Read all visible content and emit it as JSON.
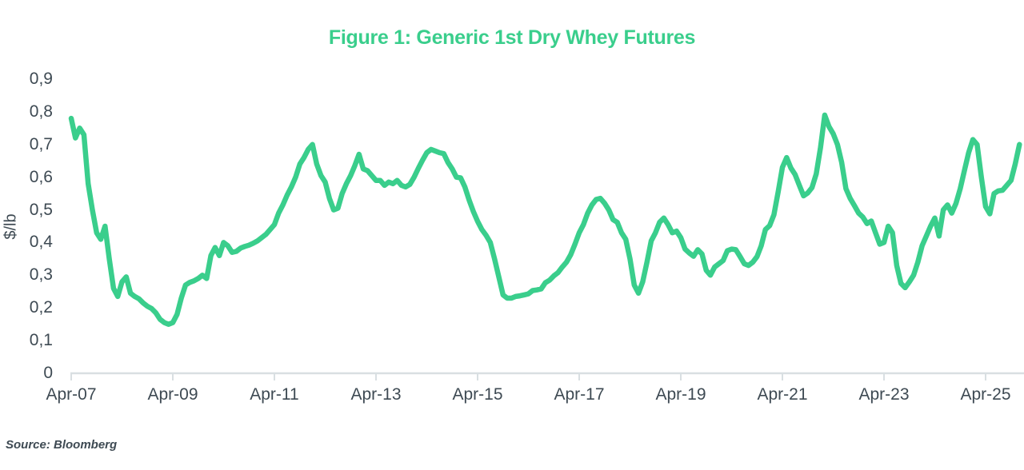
{
  "title": "Figure 1: Generic 1st Dry Whey Futures",
  "source_note": "Source: Bloomberg",
  "colors": {
    "accent_green": "#3ACE8C",
    "text": "#3E4A53",
    "axis_gray": "#D9DFE2"
  },
  "chart_data": {
    "type": "line",
    "title": "Figure 1: Generic 1st Dry Whey Futures",
    "xlabel": "",
    "ylabel": "$/lb",
    "ylim": [
      0,
      0.9
    ],
    "grid": false,
    "legend_position": "none",
    "y_tick_labels": [
      "0",
      "0,1",
      "0,2",
      "0,3",
      "0,4",
      "0,5",
      "0,6",
      "0,7",
      "0,8",
      "0,9"
    ],
    "y_tick_values": [
      0,
      0.1,
      0.2,
      0.3,
      0.4,
      0.5,
      0.6,
      0.7,
      0.8,
      0.9
    ],
    "x_ticks": [
      {
        "label": "Apr-07",
        "month": 0
      },
      {
        "label": "Apr-09",
        "month": 24
      },
      {
        "label": "Apr-11",
        "month": 48
      },
      {
        "label": "Apr-13",
        "month": 72
      },
      {
        "label": "Apr-15",
        "month": 96
      },
      {
        "label": "Apr-17",
        "month": 120
      },
      {
        "label": "Apr-19",
        "month": 144
      },
      {
        "label": "Apr-21",
        "month": 168
      },
      {
        "label": "Apr-23",
        "month": 192
      },
      {
        "label": "Apr-25",
        "month": 216
      }
    ],
    "x_unit": "months since Apr-2007",
    "series": [
      {
        "name": "Generic 1st Dry Whey Futures ($/lb)",
        "points": [
          [
            0,
            0.78
          ],
          [
            1,
            0.72
          ],
          [
            2,
            0.75
          ],
          [
            3,
            0.73
          ],
          [
            4,
            0.58
          ],
          [
            5,
            0.5
          ],
          [
            6,
            0.43
          ],
          [
            7,
            0.41
          ],
          [
            8,
            0.45
          ],
          [
            9,
            0.35
          ],
          [
            10,
            0.26
          ],
          [
            11,
            0.235
          ],
          [
            12,
            0.28
          ],
          [
            13,
            0.295
          ],
          [
            14,
            0.245
          ],
          [
            15,
            0.235
          ],
          [
            16,
            0.228
          ],
          [
            17,
            0.215
          ],
          [
            18,
            0.205
          ],
          [
            19,
            0.198
          ],
          [
            20,
            0.185
          ],
          [
            21,
            0.165
          ],
          [
            22,
            0.155
          ],
          [
            23,
            0.15
          ],
          [
            24,
            0.155
          ],
          [
            25,
            0.18
          ],
          [
            26,
            0.23
          ],
          [
            27,
            0.27
          ],
          [
            28,
            0.278
          ],
          [
            29,
            0.283
          ],
          [
            30,
            0.29
          ],
          [
            31,
            0.3
          ],
          [
            32,
            0.29
          ],
          [
            33,
            0.36
          ],
          [
            34,
            0.385
          ],
          [
            35,
            0.36
          ],
          [
            36,
            0.4
          ],
          [
            37,
            0.39
          ],
          [
            38,
            0.37
          ],
          [
            39,
            0.373
          ],
          [
            40,
            0.383
          ],
          [
            41,
            0.388
          ],
          [
            42,
            0.392
          ],
          [
            43,
            0.398
          ],
          [
            44,
            0.405
          ],
          [
            45,
            0.415
          ],
          [
            46,
            0.425
          ],
          [
            47,
            0.44
          ],
          [
            48,
            0.455
          ],
          [
            49,
            0.49
          ],
          [
            50,
            0.515
          ],
          [
            51,
            0.545
          ],
          [
            52,
            0.57
          ],
          [
            53,
            0.6
          ],
          [
            54,
            0.64
          ],
          [
            55,
            0.66
          ],
          [
            56,
            0.685
          ],
          [
            57,
            0.7
          ],
          [
            58,
            0.64
          ],
          [
            59,
            0.605
          ],
          [
            60,
            0.585
          ],
          [
            61,
            0.535
          ],
          [
            62,
            0.5
          ],
          [
            63,
            0.505
          ],
          [
            64,
            0.55
          ],
          [
            65,
            0.58
          ],
          [
            66,
            0.605
          ],
          [
            67,
            0.635
          ],
          [
            68,
            0.67
          ],
          [
            69,
            0.625
          ],
          [
            70,
            0.62
          ],
          [
            71,
            0.605
          ],
          [
            72,
            0.59
          ],
          [
            73,
            0.59
          ],
          [
            74,
            0.575
          ],
          [
            75,
            0.585
          ],
          [
            76,
            0.58
          ],
          [
            77,
            0.59
          ],
          [
            78,
            0.575
          ],
          [
            79,
            0.57
          ],
          [
            80,
            0.578
          ],
          [
            81,
            0.6
          ],
          [
            82,
            0.627
          ],
          [
            83,
            0.652
          ],
          [
            84,
            0.675
          ],
          [
            85,
            0.685
          ],
          [
            86,
            0.68
          ],
          [
            87,
            0.675
          ],
          [
            88,
            0.672
          ],
          [
            89,
            0.645
          ],
          [
            90,
            0.625
          ],
          [
            91,
            0.6
          ],
          [
            92,
            0.598
          ],
          [
            93,
            0.57
          ],
          [
            94,
            0.53
          ],
          [
            95,
            0.495
          ],
          [
            96,
            0.465
          ],
          [
            97,
            0.44
          ],
          [
            98,
            0.422
          ],
          [
            99,
            0.4
          ],
          [
            100,
            0.35
          ],
          [
            101,
            0.295
          ],
          [
            102,
            0.24
          ],
          [
            103,
            0.23
          ],
          [
            104,
            0.23
          ],
          [
            105,
            0.235
          ],
          [
            106,
            0.237
          ],
          [
            107,
            0.24
          ],
          [
            108,
            0.243
          ],
          [
            109,
            0.253
          ],
          [
            110,
            0.255
          ],
          [
            111,
            0.258
          ],
          [
            112,
            0.277
          ],
          [
            113,
            0.285
          ],
          [
            114,
            0.298
          ],
          [
            115,
            0.308
          ],
          [
            116,
            0.325
          ],
          [
            117,
            0.34
          ],
          [
            118,
            0.363
          ],
          [
            119,
            0.395
          ],
          [
            120,
            0.43
          ],
          [
            121,
            0.455
          ],
          [
            122,
            0.49
          ],
          [
            123,
            0.515
          ],
          [
            124,
            0.532
          ],
          [
            125,
            0.535
          ],
          [
            126,
            0.52
          ],
          [
            127,
            0.5
          ],
          [
            128,
            0.47
          ],
          [
            129,
            0.462
          ],
          [
            130,
            0.43
          ],
          [
            131,
            0.41
          ],
          [
            132,
            0.35
          ],
          [
            133,
            0.27
          ],
          [
            134,
            0.245
          ],
          [
            135,
            0.28
          ],
          [
            136,
            0.34
          ],
          [
            137,
            0.405
          ],
          [
            138,
            0.43
          ],
          [
            139,
            0.462
          ],
          [
            140,
            0.475
          ],
          [
            141,
            0.455
          ],
          [
            142,
            0.43
          ],
          [
            143,
            0.435
          ],
          [
            144,
            0.415
          ],
          [
            145,
            0.38
          ],
          [
            146,
            0.368
          ],
          [
            147,
            0.358
          ],
          [
            148,
            0.378
          ],
          [
            149,
            0.365
          ],
          [
            150,
            0.315
          ],
          [
            151,
            0.3
          ],
          [
            152,
            0.325
          ],
          [
            153,
            0.335
          ],
          [
            154,
            0.345
          ],
          [
            155,
            0.375
          ],
          [
            156,
            0.38
          ],
          [
            157,
            0.378
          ],
          [
            158,
            0.357
          ],
          [
            159,
            0.335
          ],
          [
            160,
            0.33
          ],
          [
            161,
            0.34
          ],
          [
            162,
            0.357
          ],
          [
            163,
            0.39
          ],
          [
            164,
            0.44
          ],
          [
            165,
            0.452
          ],
          [
            166,
            0.485
          ],
          [
            167,
            0.555
          ],
          [
            168,
            0.63
          ],
          [
            169,
            0.66
          ],
          [
            170,
            0.628
          ],
          [
            171,
            0.608
          ],
          [
            172,
            0.575
          ],
          [
            173,
            0.543
          ],
          [
            174,
            0.552
          ],
          [
            175,
            0.568
          ],
          [
            176,
            0.61
          ],
          [
            177,
            0.69
          ],
          [
            178,
            0.79
          ],
          [
            179,
            0.755
          ],
          [
            180,
            0.733
          ],
          [
            181,
            0.7
          ],
          [
            182,
            0.645
          ],
          [
            183,
            0.565
          ],
          [
            184,
            0.535
          ],
          [
            185,
            0.513
          ],
          [
            186,
            0.49
          ],
          [
            187,
            0.478
          ],
          [
            188,
            0.458
          ],
          [
            189,
            0.466
          ],
          [
            190,
            0.43
          ],
          [
            191,
            0.395
          ],
          [
            192,
            0.4
          ],
          [
            193,
            0.45
          ],
          [
            194,
            0.43
          ],
          [
            195,
            0.33
          ],
          [
            196,
            0.275
          ],
          [
            197,
            0.262
          ],
          [
            198,
            0.28
          ],
          [
            199,
            0.3
          ],
          [
            200,
            0.34
          ],
          [
            201,
            0.39
          ],
          [
            202,
            0.42
          ],
          [
            203,
            0.45
          ],
          [
            204,
            0.475
          ],
          [
            205,
            0.42
          ],
          [
            206,
            0.5
          ],
          [
            207,
            0.515
          ],
          [
            208,
            0.49
          ],
          [
            209,
            0.52
          ],
          [
            210,
            0.565
          ],
          [
            211,
            0.62
          ],
          [
            212,
            0.675
          ],
          [
            213,
            0.715
          ],
          [
            214,
            0.7
          ],
          [
            215,
            0.6
          ],
          [
            216,
            0.51
          ],
          [
            217,
            0.488
          ],
          [
            218,
            0.55
          ],
          [
            219,
            0.558
          ],
          [
            220,
            0.56
          ],
          [
            221,
            0.575
          ],
          [
            222,
            0.59
          ],
          [
            223,
            0.64
          ],
          [
            224,
            0.7
          ]
        ]
      }
    ]
  }
}
